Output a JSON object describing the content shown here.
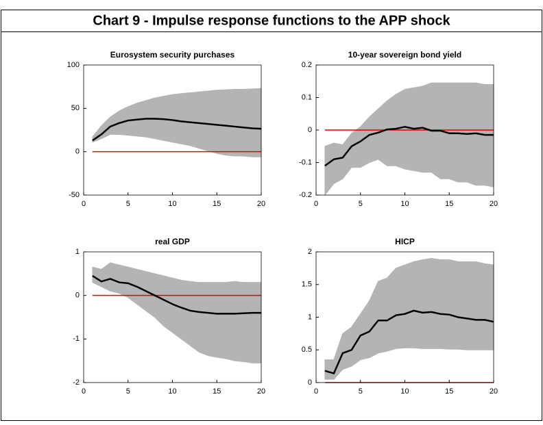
{
  "title": "Chart 9 - Impulse response functions to the APP shock",
  "chart_data": [
    {
      "type": "band-line",
      "title": "Eurosystem security purchases",
      "x": [
        1,
        2,
        3,
        4,
        5,
        6,
        7,
        8,
        9,
        10,
        11,
        12,
        13,
        14,
        15,
        16,
        17,
        18,
        19,
        20
      ],
      "xlim": [
        0,
        20
      ],
      "xticks": [
        0,
        5,
        10,
        15,
        20
      ],
      "ylim": [
        -50,
        100
      ],
      "yticks": [
        -50,
        0,
        50,
        100
      ],
      "reference_line": {
        "value": 0,
        "color": "#e00000"
      },
      "band": {
        "color": "#b4b4b4",
        "upper": [
          17,
          30,
          40,
          47,
          52,
          56,
          59,
          62,
          64,
          66,
          67,
          68,
          69,
          70,
          71,
          71.5,
          72,
          72,
          72.5,
          73
        ],
        "lower": [
          11,
          15,
          20,
          20,
          19,
          18,
          17,
          15,
          13,
          11,
          9,
          7,
          4,
          1,
          -2,
          -4,
          -5,
          -5,
          -6,
          -6
        ]
      },
      "series": [
        {
          "color": "#000000",
          "values": [
            13,
            20,
            29,
            33,
            36,
            37,
            38,
            38,
            37.5,
            36.5,
            35,
            34,
            33,
            32,
            31,
            30,
            29,
            28,
            27,
            26.5
          ]
        }
      ]
    },
    {
      "type": "band-line",
      "title": "10-year sovereign bond yield",
      "x": [
        1,
        2,
        3,
        4,
        5,
        6,
        7,
        8,
        9,
        10,
        11,
        12,
        13,
        14,
        15,
        16,
        17,
        18,
        19,
        20
      ],
      "xlim": [
        0,
        20
      ],
      "xticks": [
        0,
        5,
        10,
        15,
        20
      ],
      "ylim": [
        -0.2,
        0.2
      ],
      "yticks": [
        -0.2,
        -0.1,
        0,
        0.1,
        0.2
      ],
      "reference_line": {
        "value": 0,
        "color": "#e00000"
      },
      "band": {
        "color": "#b4b4b4",
        "upper": [
          -0.05,
          -0.04,
          -0.045,
          -0.01,
          0.01,
          0.04,
          0.065,
          0.09,
          0.11,
          0.125,
          0.13,
          0.135,
          0.145,
          0.145,
          0.145,
          0.145,
          0.145,
          0.145,
          0.14,
          0.14
        ],
        "lower": [
          -0.2,
          -0.165,
          -0.15,
          -0.115,
          -0.115,
          -0.1,
          -0.09,
          -0.11,
          -0.11,
          -0.12,
          -0.125,
          -0.13,
          -0.13,
          -0.15,
          -0.15,
          -0.16,
          -0.16,
          -0.17,
          -0.17,
          -0.175
        ]
      },
      "series": [
        {
          "color": "#000000",
          "values": [
            -0.11,
            -0.09,
            -0.085,
            -0.05,
            -0.035,
            -0.015,
            -0.008,
            0.002,
            0.004,
            0.01,
            0.004,
            0.007,
            -0.002,
            -0.002,
            -0.01,
            -0.01,
            -0.012,
            -0.01,
            -0.015,
            -0.015
          ]
        }
      ]
    },
    {
      "type": "band-line",
      "title": "real GDP",
      "x": [
        1,
        2,
        3,
        4,
        5,
        6,
        7,
        8,
        9,
        10,
        11,
        12,
        13,
        14,
        15,
        16,
        17,
        18,
        19,
        20
      ],
      "xlim": [
        0,
        20
      ],
      "xticks": [
        0,
        5,
        10,
        15,
        20
      ],
      "ylim": [
        -2,
        1
      ],
      "yticks": [
        -2,
        -1,
        0,
        1
      ],
      "reference_line": {
        "value": 0,
        "color": "#e00000"
      },
      "band": {
        "color": "#b4b4b4",
        "upper": [
          0.65,
          0.6,
          0.75,
          0.7,
          0.65,
          0.6,
          0.55,
          0.5,
          0.45,
          0.4,
          0.35,
          0.32,
          0.3,
          0.3,
          0.3,
          0.3,
          0.32,
          0.3,
          0.3,
          0.3
        ],
        "lower": [
          0.3,
          0.2,
          0.1,
          0.05,
          -0.05,
          -0.2,
          -0.35,
          -0.5,
          -0.7,
          -0.85,
          -1.0,
          -1.15,
          -1.3,
          -1.38,
          -1.42,
          -1.45,
          -1.5,
          -1.52,
          -1.55,
          -1.55
        ]
      },
      "series": [
        {
          "color": "#000000",
          "values": [
            0.45,
            0.32,
            0.38,
            0.3,
            0.28,
            0.2,
            0.1,
            0.0,
            -0.1,
            -0.2,
            -0.28,
            -0.35,
            -0.38,
            -0.4,
            -0.42,
            -0.42,
            -0.42,
            -0.41,
            -0.4,
            -0.4
          ]
        }
      ]
    },
    {
      "type": "band-line",
      "title": "HICP",
      "x": [
        1,
        2,
        3,
        4,
        5,
        6,
        7,
        8,
        9,
        10,
        11,
        12,
        13,
        14,
        15,
        16,
        17,
        18,
        19,
        20
      ],
      "xlim": [
        0,
        20
      ],
      "xticks": [
        0,
        5,
        10,
        15,
        20
      ],
      "ylim": [
        0,
        2
      ],
      "yticks": [
        0,
        0.5,
        1,
        1.5,
        2
      ],
      "reference_line": {
        "value": 0,
        "color": "#e00000"
      },
      "band": {
        "color": "#b4b4b4",
        "upper": [
          0.35,
          0.35,
          0.75,
          0.85,
          1.05,
          1.25,
          1.55,
          1.6,
          1.75,
          1.8,
          1.85,
          1.88,
          1.9,
          1.88,
          1.88,
          1.85,
          1.85,
          1.85,
          1.82,
          1.8
        ],
        "lower": [
          0.05,
          0.05,
          0.2,
          0.25,
          0.35,
          0.38,
          0.45,
          0.48,
          0.52,
          0.53,
          0.53,
          0.52,
          0.52,
          0.52,
          0.51,
          0.51,
          0.5,
          0.5,
          0.5,
          0.5
        ]
      },
      "series": [
        {
          "color": "#000000",
          "values": [
            0.18,
            0.14,
            0.45,
            0.5,
            0.72,
            0.78,
            0.95,
            0.95,
            1.03,
            1.05,
            1.1,
            1.07,
            1.08,
            1.05,
            1.04,
            1.0,
            0.98,
            0.96,
            0.96,
            0.93
          ]
        }
      ]
    }
  ]
}
